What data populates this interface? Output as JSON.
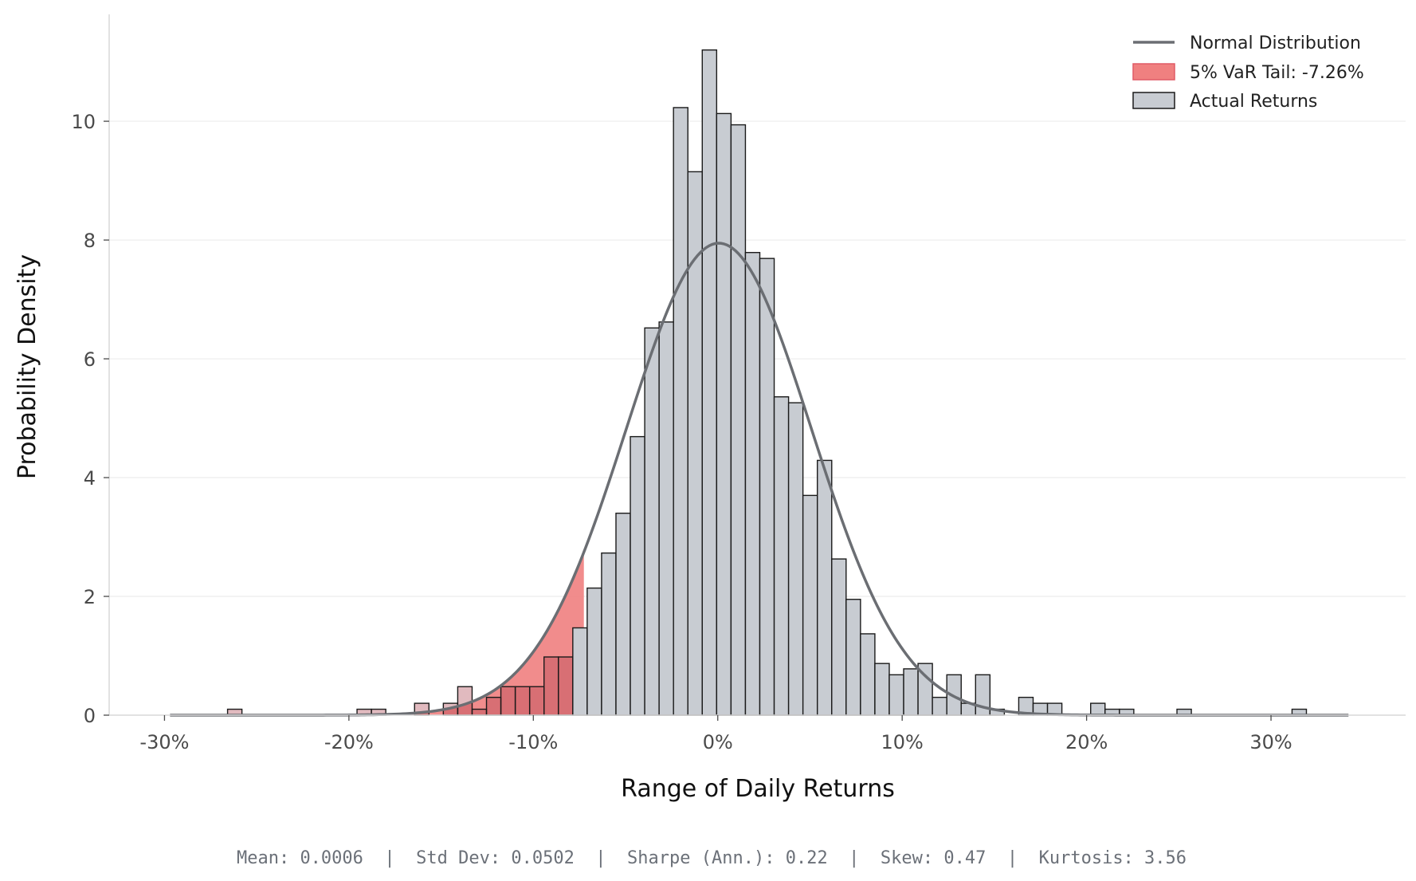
{
  "chart_data": {
    "type": "bar",
    "xlabel": "Range of Daily Returns",
    "ylabel": "Probability Density",
    "xlim": [
      -0.33,
      0.373
    ],
    "ylim": [
      0,
      11.8
    ],
    "x_ticks": [
      -0.3,
      -0.2,
      -0.1,
      0,
      0.1,
      0.2,
      0.3
    ],
    "x_tick_labels": [
      "-30%",
      "-20%",
      "-10%",
      "0%",
      "10%",
      "20%",
      "30%"
    ],
    "y_ticks": [
      0,
      2,
      4,
      6,
      8,
      10
    ],
    "y_tick_labels": [
      "0",
      "2",
      "4",
      "6",
      "8",
      "10"
    ],
    "grid": "horizontal",
    "legend_position": "top-right",
    "legend": [
      {
        "label": "Normal Distribution",
        "kind": "line",
        "color": "#6b6e73"
      },
      {
        "label": "5% VaR Tail: -7.26%",
        "kind": "patch",
        "color": "#f08080",
        "edge": "#e05a66"
      },
      {
        "label": "Actual Returns",
        "kind": "patch",
        "color": "#c8ccd2",
        "edge": "#1a1a1a"
      }
    ],
    "series": [
      {
        "name": "Actual Returns",
        "bin_width": 0.0078,
        "bins": [
          [
            -0.2658,
            0.1
          ],
          [
            -0.1956,
            0.1
          ],
          [
            -0.1878,
            0.1
          ],
          [
            -0.1644,
            0.2
          ],
          [
            -0.1488,
            0.2
          ],
          [
            -0.141,
            0.48
          ],
          [
            -0.1332,
            0.1
          ],
          [
            -0.1254,
            0.3
          ],
          [
            -0.1176,
            0.48
          ],
          [
            -0.1098,
            0.48
          ],
          [
            -0.102,
            0.48
          ],
          [
            -0.0942,
            0.98
          ],
          [
            -0.0864,
            0.98
          ],
          [
            -0.0786,
            1.47
          ],
          [
            -0.0708,
            2.14
          ],
          [
            -0.063,
            2.73
          ],
          [
            -0.0552,
            3.4
          ],
          [
            -0.0474,
            4.69
          ],
          [
            -0.0396,
            6.52
          ],
          [
            -0.0318,
            6.62
          ],
          [
            -0.024,
            10.23
          ],
          [
            -0.0162,
            9.15
          ],
          [
            -0.0084,
            11.2
          ],
          [
            -0.0006,
            10.13
          ],
          [
            0.0072,
            9.94
          ],
          [
            0.015,
            7.79
          ],
          [
            0.0228,
            7.69
          ],
          [
            0.0306,
            5.36
          ],
          [
            0.0384,
            5.26
          ],
          [
            0.0462,
            3.7
          ],
          [
            0.054,
            4.29
          ],
          [
            0.0618,
            2.63
          ],
          [
            0.0696,
            1.95
          ],
          [
            0.0774,
            1.37
          ],
          [
            0.0852,
            0.87
          ],
          [
            0.093,
            0.68
          ],
          [
            0.1008,
            0.78
          ],
          [
            0.1086,
            0.87
          ],
          [
            0.1164,
            0.3
          ],
          [
            0.1242,
            0.68
          ],
          [
            0.132,
            0.2
          ],
          [
            0.1398,
            0.68
          ],
          [
            0.1476,
            0.1
          ],
          [
            0.1632,
            0.3
          ],
          [
            0.171,
            0.2
          ],
          [
            0.1788,
            0.2
          ],
          [
            0.2022,
            0.2
          ],
          [
            0.21,
            0.1
          ],
          [
            0.2178,
            0.1
          ],
          [
            0.249,
            0.1
          ],
          [
            0.3114,
            0.1
          ]
        ],
        "color": "#c8ccd2",
        "edge": "#1a1a1a"
      },
      {
        "name": "Normal Distribution",
        "kind": "line",
        "mean": 0.0006,
        "std": 0.0502,
        "x_range": [
          -0.297,
          0.342
        ],
        "color": "#6b6e73"
      },
      {
        "name": "5% VaR Tail: -7.26%",
        "kind": "area",
        "var_threshold": -0.0726,
        "color": "#f08080"
      }
    ],
    "stats_text": "Mean: 0.0006  |  Std Dev: 0.0502  |  Sharpe (Ann.): 0.22  |  Skew: 0.47  |  Kurtosis: 3.56"
  }
}
